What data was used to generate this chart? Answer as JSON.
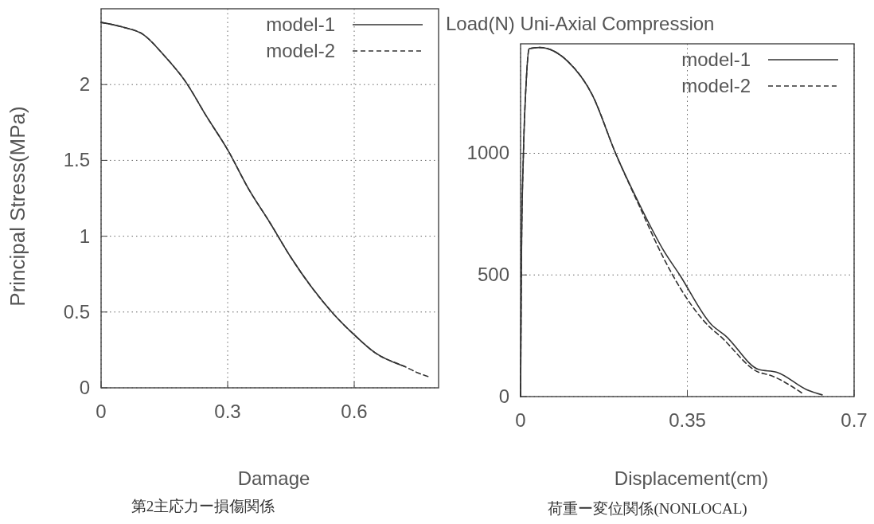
{
  "chart_data": [
    {
      "type": "line",
      "xlabel": "Damage",
      "ylabel": "Principal Stress(MPa)",
      "annotations": [
        "第2主応力ー損傷関係"
      ],
      "xlim": [
        0,
        0.8
      ],
      "ylim": [
        0,
        2.5
      ],
      "xticks": [
        0,
        0.3,
        0.6
      ],
      "yticks": [
        0,
        0.5,
        1,
        1.5,
        2
      ],
      "grid": true,
      "legend": "top right",
      "series": [
        {
          "name": "model-1",
          "color": "#333333",
          "line_style": "solid",
          "x": [
            0,
            0.05,
            0.1,
            0.15,
            0.2,
            0.25,
            0.3,
            0.35,
            0.4,
            0.45,
            0.5,
            0.55,
            0.6,
            0.65,
            0.72
          ],
          "values": [
            2.41,
            2.38,
            2.33,
            2.19,
            2.02,
            1.79,
            1.57,
            1.31,
            1.09,
            0.86,
            0.66,
            0.49,
            0.35,
            0.23,
            0.14
          ]
        },
        {
          "name": "model-2",
          "color": "#333333",
          "line_style": "dashed",
          "x": [
            0,
            0.05,
            0.1,
            0.15,
            0.2,
            0.25,
            0.3,
            0.35,
            0.4,
            0.45,
            0.5,
            0.55,
            0.6,
            0.65,
            0.72,
            0.75,
            0.78
          ],
          "values": [
            2.41,
            2.38,
            2.33,
            2.19,
            2.02,
            1.79,
            1.57,
            1.31,
            1.09,
            0.86,
            0.66,
            0.49,
            0.35,
            0.23,
            0.14,
            0.1,
            0.07
          ]
        }
      ]
    },
    {
      "type": "line",
      "title": "Load(N) Uni-Axial Compression",
      "xlabel": "Displacement(cm)",
      "annotations": [
        "荷重ー変位関係(NONLOCAL)"
      ],
      "xlim": [
        0,
        0.7
      ],
      "ylim": [
        0,
        1450
      ],
      "xticks": [
        0,
        0.35,
        0.7
      ],
      "yticks": [
        0,
        500,
        1000
      ],
      "grid": true,
      "legend": "top right",
      "series": [
        {
          "name": "model-1",
          "color": "#333333",
          "line_style": "solid",
          "x": [
            0,
            0.002,
            0.006,
            0.012,
            0.018,
            0.04,
            0.1,
            0.15,
            0.2,
            0.25,
            0.3,
            0.334,
            0.4,
            0.43,
            0.5,
            0.538,
            0.6,
            0.633
          ],
          "values": [
            0,
            600,
            1000,
            1300,
            1430,
            1435,
            1376,
            1242,
            997,
            788,
            601,
            500,
            297,
            250,
            111,
            100,
            29,
            7
          ]
        },
        {
          "name": "model-2",
          "color": "#333333",
          "line_style": "dashed",
          "x": [
            0,
            0.002,
            0.006,
            0.012,
            0.018,
            0.04,
            0.1,
            0.15,
            0.2,
            0.25,
            0.3,
            0.319,
            0.4,
            0.418,
            0.5,
            0.52,
            0.594
          ],
          "values": [
            0,
            600,
            1000,
            1300,
            1430,
            1435,
            1376,
            1242,
            997,
            780,
            570,
            500,
            280,
            250,
            100,
            90,
            10
          ]
        }
      ]
    }
  ]
}
